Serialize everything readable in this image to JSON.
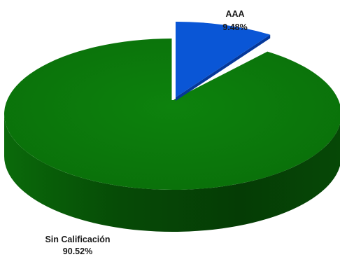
{
  "chart_data": {
    "type": "pie",
    "style": "3d",
    "slices": [
      {
        "label": "AAA",
        "percent_label": "9.48%",
        "value": 9.48,
        "color": "#0a56d6"
      },
      {
        "label": "Sin Calificación",
        "percent_label": "90.52%",
        "value": 90.52,
        "color": "#0c7d0c"
      }
    ],
    "colors": {
      "green_side": "#075807",
      "blue_side": "#05389a"
    }
  }
}
